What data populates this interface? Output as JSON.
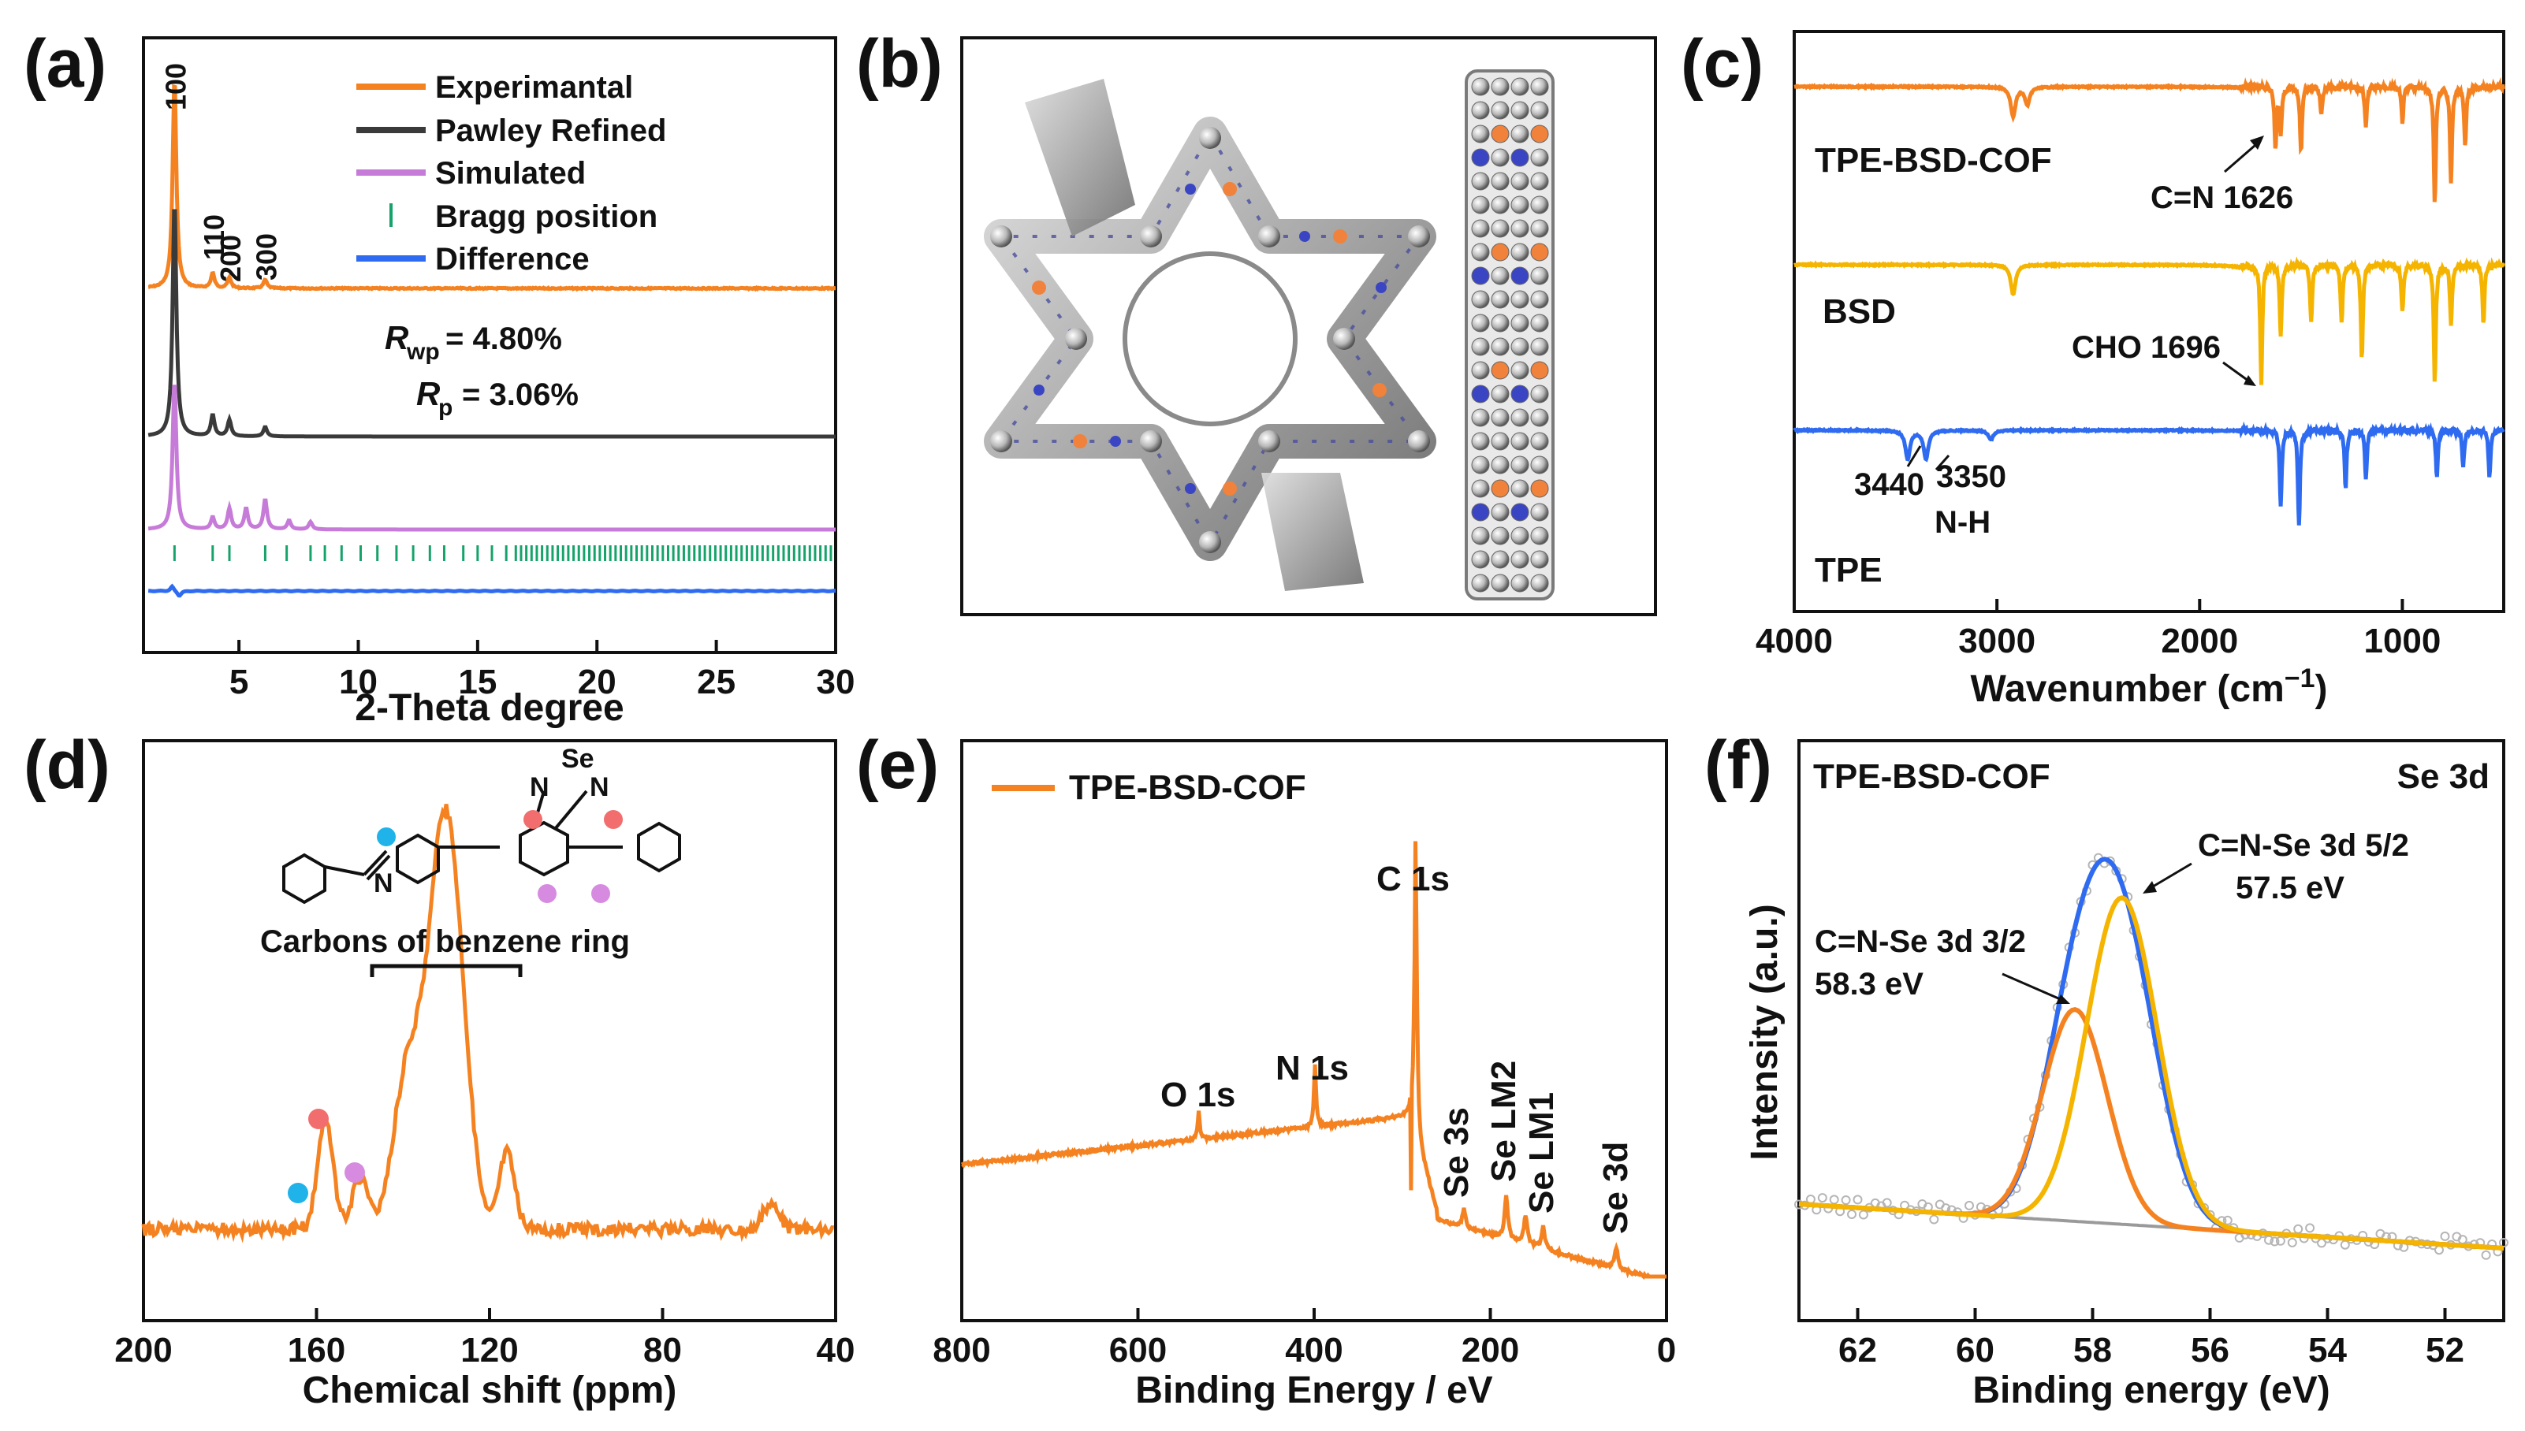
{
  "panels": {
    "a": {
      "label": "(a)",
      "chart_data": {
        "type": "line",
        "xlabel": "2-Theta degree",
        "xlim": [
          1,
          30
        ],
        "xticks": [
          "5",
          "10",
          "15",
          "20",
          "25",
          "30"
        ],
        "legend_position": "top-right",
        "legend": [
          "Experimantal",
          "Pawley Refined",
          "Simulated",
          "Bragg position",
          "Difference"
        ],
        "peak_labels": [
          "100",
          "110",
          "200",
          "300"
        ],
        "peak_positions": [
          2.3,
          3.9,
          4.6,
          6.1
        ],
        "annotations": {
          "rwp": "= 4.80%",
          "rp": "= 3.06%",
          "rwp_sym": "R",
          "rwp_sub": "wp",
          "rp_sym": "R",
          "rp_sub": "p"
        },
        "series": [
          {
            "name": "Experimantal",
            "peaks_x": [
              2.3,
              3.9,
              4.6,
              6.1
            ],
            "peaks_h": [
              1.0,
              0.07,
              0.05,
              0.04
            ]
          },
          {
            "name": "Pawley Refined",
            "peaks_x": [
              2.3,
              3.9,
              4.6,
              6.1
            ],
            "peaks_h": [
              1.0,
              0.09,
              0.07,
              0.04
            ]
          },
          {
            "name": "Simulated",
            "peaks_x": [
              2.3,
              3.9,
              4.6,
              5.3,
              6.1,
              7.1,
              8.0
            ],
            "peaks_h": [
              1.0,
              0.08,
              0.14,
              0.14,
              0.2,
              0.06,
              0.05
            ]
          },
          {
            "name": "Difference",
            "peaks_x": [
              2.3
            ],
            "peaks_h": [
              0.15
            ]
          }
        ],
        "colors": {
          "exp": "#f58220",
          "pawley": "#3a3a3a",
          "sim": "#c77bd8",
          "bragg": "#16a36a",
          "diff": "#2f6bf0"
        }
      }
    },
    "b": {
      "label": "(b)"
    },
    "c": {
      "label": "(c)",
      "chart_data": {
        "type": "line",
        "xlabel": "Wavenumber (cm",
        "xlabel_sup": "−1",
        "xlabel_end": ")",
        "xlim": [
          4000,
          500
        ],
        "xticks": [
          "4000",
          "3000",
          "2000",
          "1000"
        ],
        "series": [
          {
            "name": "TPE-BSD-COF",
            "color": "#f58220",
            "bands": [
              [
                2920,
                0.25
              ],
              [
                2850,
                0.15
              ],
              [
                1626,
                0.5
              ],
              [
                1600,
                0.4
              ],
              [
                1500,
                0.55
              ],
              [
                1400,
                0.25
              ],
              [
                1180,
                0.35
              ],
              [
                1000,
                0.3
              ],
              [
                840,
                1.0
              ],
              [
                760,
                0.8
              ],
              [
                690,
                0.5
              ]
            ]
          },
          {
            "name": "BSD",
            "color": "#f5b400",
            "bands": [
              [
                2920,
                0.25
              ],
              [
                1696,
                1.0
              ],
              [
                1600,
                0.6
              ],
              [
                1450,
                0.5
              ],
              [
                1300,
                0.5
              ],
              [
                1200,
                0.8
              ],
              [
                1000,
                0.4
              ],
              [
                840,
                1.0
              ],
              [
                760,
                0.5
              ],
              [
                600,
                0.5
              ]
            ]
          },
          {
            "name": "TPE",
            "color": "#2f6bf0",
            "bands": [
              [
                3440,
                0.3
              ],
              [
                3350,
                0.3
              ],
              [
                3030,
                0.1
              ],
              [
                1600,
                0.8
              ],
              [
                1510,
                1.0
              ],
              [
                1280,
                0.6
              ],
              [
                1180,
                0.5
              ],
              [
                830,
                0.5
              ],
              [
                700,
                0.4
              ],
              [
                570,
                0.5
              ]
            ]
          }
        ],
        "annotations": [
          "C=N 1626",
          "CHO 1696",
          "3440",
          "3350",
          "N-H"
        ]
      }
    },
    "d": {
      "label": "(d)",
      "chart_data": {
        "type": "line",
        "xlabel": "Chemical shift (ppm)",
        "xlim": [
          200,
          40
        ],
        "xticks": [
          "200",
          "160",
          "120",
          "80",
          "40"
        ],
        "peaks": [
          [
            158,
            0.42
          ],
          [
            150,
            0.2
          ],
          [
            139,
            0.6
          ],
          [
            132,
            1.0
          ],
          [
            128,
            0.95
          ],
          [
            116,
            0.3
          ],
          [
            55,
            0.1
          ]
        ],
        "annotations": [
          "Carbons of benzene ring",
          "Se",
          "N",
          "N",
          "N"
        ],
        "marker_colors": {
          "cyan": "#1fb3ea",
          "red": "#f26d6d",
          "pink": "#d68be0"
        },
        "color": "#f58220"
      }
    },
    "e": {
      "label": "(e)",
      "chart_data": {
        "type": "line",
        "xlabel": "Binding Energy / eV",
        "xlim": [
          800,
          0
        ],
        "xticks": [
          "800",
          "600",
          "400",
          "200",
          "0"
        ],
        "legend": [
          "TPE-BSD-COF"
        ],
        "legend_position": "top-left",
        "peaks": [
          [
            531,
            0.08
          ],
          [
            399,
            0.17
          ],
          [
            284.8,
            1.0
          ],
          [
            230,
            0.05
          ],
          [
            182,
            0.12
          ],
          [
            160,
            0.08
          ],
          [
            140,
            0.06
          ],
          [
            57,
            0.06
          ]
        ],
        "annotations": [
          "O 1s",
          "N 1s",
          "C 1s",
          "Se 3s",
          "Se LM2",
          "Se LM1",
          "Se 3d"
        ],
        "color": "#f58220"
      }
    },
    "f": {
      "label": "(f)",
      "chart_data": {
        "type": "line",
        "xlabel": "Binding energy (eV)",
        "ylabel": "Intensity (a.u.)",
        "xlim": [
          63,
          51
        ],
        "xticks": [
          "62",
          "60",
          "58",
          "56",
          "54",
          "52"
        ],
        "title_left": "TPE-BSD-COF",
        "title_right": "Se 3d",
        "series": [
          {
            "name": "C=N-Se 3d 3/2",
            "center": 58.3,
            "height": 0.48,
            "color": "#f58220"
          },
          {
            "name": "C=N-Se 3d 5/2",
            "center": 57.5,
            "height": 0.74,
            "color": "#f5b400"
          },
          {
            "name": "Envelope",
            "color": "#2f6bf0"
          },
          {
            "name": "Background",
            "color": "#9a9a9a"
          }
        ],
        "annotations": [
          "C=N-Se 3d 3/2",
          "58.3 eV",
          "C=N-Se 3d 5/2",
          "57.5 eV"
        ]
      }
    }
  }
}
